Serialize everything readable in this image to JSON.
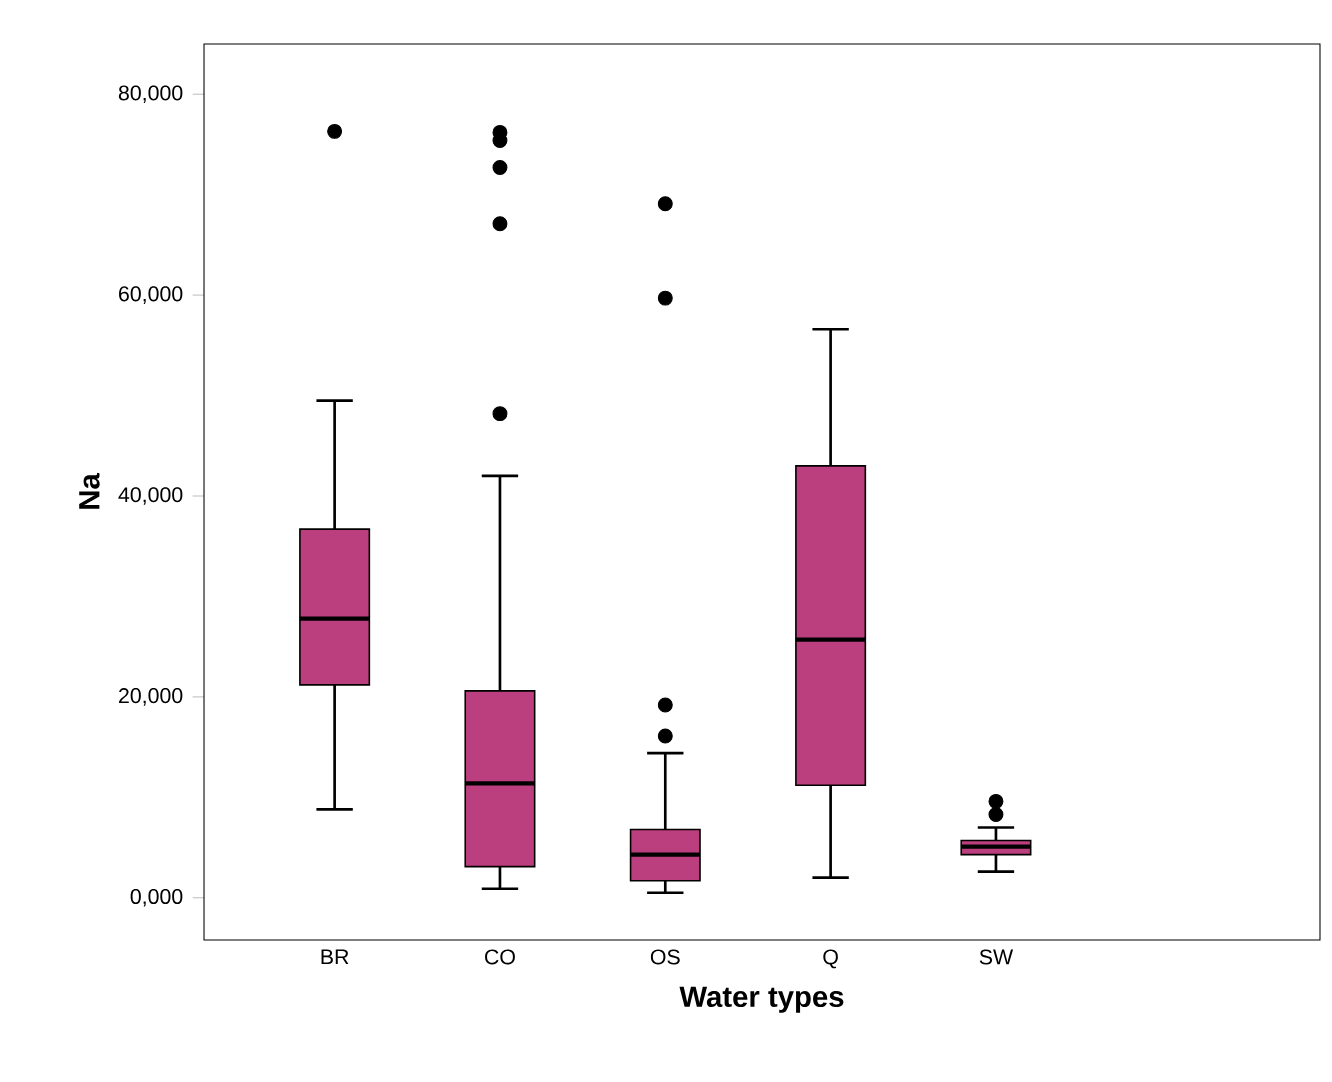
{
  "chart_data": {
    "type": "box",
    "xlabel": "Water types",
    "ylabel": "Na",
    "categories": [
      "BR",
      "CO",
      "OS",
      "Q",
      "SW"
    ],
    "color": "#bb3f7f",
    "boxes": [
      {
        "low": 8800,
        "q1": 21200,
        "median": 27800,
        "q3": 36700,
        "high": 49500,
        "outliers": [
          76300
        ]
      },
      {
        "low": 900,
        "q1": 3100,
        "median": 11400,
        "q3": 20600,
        "high": 42000,
        "outliers": [
          48200,
          67100,
          72700,
          75400,
          76200
        ]
      },
      {
        "low": 500,
        "q1": 1700,
        "median": 4300,
        "q3": 6800,
        "high": 14400,
        "outliers": [
          16100,
          19200,
          59700,
          69100
        ]
      },
      {
        "low": 2000,
        "q1": 11200,
        "median": 25700,
        "q3": 43000,
        "high": 56600
      },
      {
        "low": 2600,
        "q1": 4300,
        "median": 5100,
        "q3": 5700,
        "high": 7000,
        "outliers": [
          8300,
          9600
        ]
      }
    ],
    "ylim": [
      -4200,
      85000
    ],
    "yticks": [
      {
        "value": 0,
        "label": "0,000"
      },
      {
        "value": 20000,
        "label": "20,000"
      },
      {
        "value": 40000,
        "label": "40,000"
      },
      {
        "value": 60000,
        "label": "60,000"
      },
      {
        "value": 80000,
        "label": "80,000"
      }
    ]
  }
}
